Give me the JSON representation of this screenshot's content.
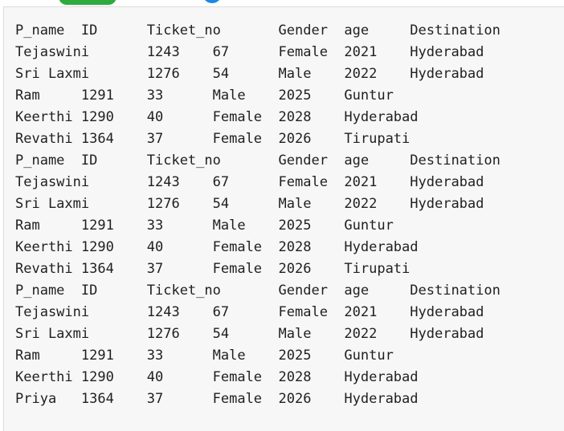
{
  "output": {
    "lines": [
      "P_name  ID      Ticket_no       Gender  age     Destination",
      "Tejaswini       1243    67      Female  2021    Hyderabad",
      "Sri Laxmi       1276    54      Male    2022    Hyderabad",
      "Ram     1291    33      Male    2025    Guntur",
      "Keerthi 1290    40      Female  2028    Hyderabad",
      "Revathi 1364    37      Female  2026    Tirupati",
      "P_name  ID      Ticket_no       Gender  age     Destination",
      "Tejaswini       1243    67      Female  2021    Hyderabad",
      "Sri Laxmi       1276    54      Male    2022    Hyderabad",
      "Ram     1291    33      Male    2025    Guntur",
      "Keerthi 1290    40      Female  2028    Hyderabad",
      "Revathi 1364    37      Female  2026    Tirupati",
      "P_name  ID      Ticket_no       Gender  age     Destination",
      "Tejaswini       1243    67      Female  2021    Hyderabad",
      "Sri Laxmi       1276    54      Male    2022    Hyderabad",
      "Ram     1291    33      Male    2025    Guntur",
      "Keerthi 1290    40      Female  2028    Hyderabad",
      "Priya   1364    37      Female  2026    Hyderabad"
    ]
  }
}
